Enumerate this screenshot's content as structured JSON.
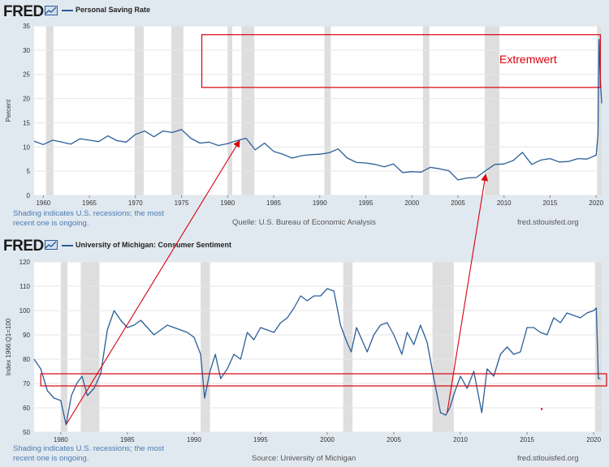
{
  "colors": {
    "series": "#2b5e99",
    "recession": "#dedede",
    "annotation": "#d9000d",
    "panel_bg": "#e1e9f0",
    "plot_bg": "#ffffff"
  },
  "top": {
    "logo": "FRED",
    "logo_icon": "chart-line-icon",
    "legend": "Personal Saving Rate",
    "note_line1": "Shading indicates U.S. recessions; the most",
    "note_line2": "recent one is ongoing.",
    "source": "Quelle: U.S. Bureau of Economic Analysis",
    "site": "fred.stlouisfed.org",
    "annotation_label": "Extremwert"
  },
  "bottom": {
    "logo": "FRED",
    "logo_icon": "chart-line-icon",
    "legend": "University of Michigan: Consumer Sentiment",
    "note_line1": "Shading indicates U.S. recessions; the most",
    "note_line2": "recent one is ongoing.",
    "source": "Source: University of Michigan",
    "site": "fred.stlouisfed.org"
  },
  "chart_data": [
    {
      "type": "line",
      "title": "Personal Saving Rate",
      "ylabel": "Percent",
      "xlabel": "",
      "xlim": [
        1959,
        2020.6
      ],
      "ylim": [
        0,
        35
      ],
      "xticks": [
        1960,
        1965,
        1970,
        1975,
        1980,
        1985,
        1990,
        1995,
        2000,
        2005,
        2010,
        2015,
        2020
      ],
      "yticks": [
        0,
        5,
        10,
        15,
        20,
        25,
        30,
        35
      ],
      "grid": true,
      "recessions": [
        [
          1960.3,
          1961.1
        ],
        [
          1969.9,
          1970.9
        ],
        [
          1973.9,
          1975.2
        ],
        [
          1980.0,
          1980.5
        ],
        [
          1981.5,
          1982.9
        ],
        [
          1990.5,
          1991.2
        ],
        [
          2001.2,
          2001.9
        ],
        [
          2007.9,
          2009.5
        ],
        [
          2020.1,
          2020.6
        ]
      ],
      "series": [
        {
          "name": "Personal Saving Rate",
          "x": [
            1959,
            1960,
            1961,
            1962,
            1963,
            1964,
            1965,
            1966,
            1967,
            1968,
            1969,
            1970,
            1971,
            1972,
            1973,
            1974,
            1975,
            1976,
            1977,
            1978,
            1979,
            1980,
            1981,
            1982,
            1983,
            1984,
            1985,
            1986,
            1987,
            1988,
            1989,
            1990,
            1991,
            1992,
            1993,
            1994,
            1995,
            1996,
            1997,
            1998,
            1999,
            2000,
            2001,
            2002,
            2003,
            2004,
            2005,
            2006,
            2007,
            2008,
            2009,
            2010,
            2011,
            2012,
            2013,
            2014,
            2015,
            2016,
            2017,
            2018,
            2019,
            2020.0,
            2020.2,
            2020.3,
            2020.45,
            2020.6
          ],
          "values": [
            11.2,
            10.5,
            11.4,
            11.0,
            10.6,
            11.7,
            11.4,
            11.1,
            12.3,
            11.3,
            11.0,
            12.6,
            13.3,
            12.1,
            13.3,
            13.0,
            13.6,
            11.8,
            10.8,
            11.0,
            10.3,
            10.7,
            11.3,
            11.8,
            9.4,
            10.8,
            9.1,
            8.5,
            7.7,
            8.2,
            8.4,
            8.5,
            8.8,
            9.6,
            7.7,
            6.8,
            6.7,
            6.4,
            5.9,
            6.5,
            4.7,
            4.9,
            4.8,
            5.8,
            5.5,
            5.1,
            3.2,
            3.6,
            3.7,
            5.1,
            6.4,
            6.5,
            7.2,
            8.9,
            6.4,
            7.3,
            7.6,
            6.9,
            7.0,
            7.6,
            7.5,
            8.3,
            12.7,
            32.2,
            24.0,
            19.0
          ]
        }
      ],
      "annotations": [
        {
          "type": "box",
          "label": "Extremwert"
        }
      ]
    },
    {
      "type": "line",
      "title": "University of Michigan: Consumer Sentiment",
      "ylabel": "Index 1966:Q1=100",
      "xlabel": "",
      "xlim": [
        1978,
        2020.6
      ],
      "ylim": [
        50,
        120
      ],
      "xticks": [
        1980,
        1985,
        1990,
        1995,
        2000,
        2005,
        2010,
        2015,
        2020
      ],
      "yticks": [
        50,
        60,
        70,
        80,
        90,
        100,
        110,
        120
      ],
      "grid": true,
      "recessions": [
        [
          1980.0,
          1980.5
        ],
        [
          1981.5,
          1982.9
        ],
        [
          1990.5,
          1991.2
        ],
        [
          2001.2,
          2001.9
        ],
        [
          2007.9,
          2009.5
        ],
        [
          2020.1,
          2020.6
        ]
      ],
      "series": [
        {
          "name": "University of Michigan: Consumer Sentiment",
          "x": [
            1978.0,
            1978.5,
            1979.0,
            1979.5,
            1980.0,
            1980.4,
            1980.8,
            1981.2,
            1981.6,
            1982.0,
            1982.5,
            1983.0,
            1983.5,
            1984.0,
            1984.5,
            1985.0,
            1985.5,
            1986.0,
            1986.5,
            1987.0,
            1987.5,
            1988.0,
            1988.5,
            1989.0,
            1989.5,
            1990.0,
            1990.5,
            1990.8,
            1991.2,
            1991.6,
            1992.0,
            1992.5,
            1993.0,
            1993.5,
            1994.0,
            1994.5,
            1995.0,
            1995.5,
            1996.0,
            1996.5,
            1997.0,
            1997.5,
            1998.0,
            1998.5,
            1999.0,
            1999.5,
            2000.0,
            2000.5,
            2001.0,
            2001.4,
            2001.8,
            2002.2,
            2002.6,
            2003.0,
            2003.5,
            2004.0,
            2004.5,
            2005.0,
            2005.6,
            2006.0,
            2006.5,
            2007.0,
            2007.5,
            2008.0,
            2008.5,
            2008.9,
            2009.2,
            2009.6,
            2010.0,
            2010.5,
            2011.0,
            2011.6,
            2012.0,
            2012.5,
            2013.0,
            2013.5,
            2014.0,
            2014.5,
            2015.0,
            2015.5,
            2016.0,
            2016.5,
            2017.0,
            2017.5,
            2018.0,
            2018.5,
            2019.0,
            2019.5,
            2020.0,
            2020.2,
            2020.35,
            2020.5
          ],
          "values": [
            80,
            76,
            67,
            64,
            63,
            53,
            65,
            70,
            73,
            65,
            68,
            74,
            92,
            100,
            96,
            93,
            94,
            96,
            93,
            90,
            92,
            94,
            93,
            92,
            91,
            89,
            82,
            64,
            75,
            82,
            72,
            76,
            82,
            80,
            91,
            88,
            93,
            92,
            91,
            95,
            97,
            101,
            106,
            104,
            106,
            106,
            109,
            108,
            94,
            88,
            83,
            93,
            88,
            83,
            90,
            94,
            95,
            90,
            82,
            91,
            86,
            94,
            87,
            72,
            58,
            57,
            60,
            67,
            73,
            68,
            75,
            58,
            76,
            73,
            82,
            85,
            82,
            83,
            93,
            93,
            91,
            90,
            97,
            95,
            99,
            98,
            97,
            99,
            100,
            101,
            72,
            72
          ]
        }
      ],
      "annotations": [
        {
          "type": "band",
          "range": [
            69,
            74
          ]
        }
      ]
    }
  ]
}
